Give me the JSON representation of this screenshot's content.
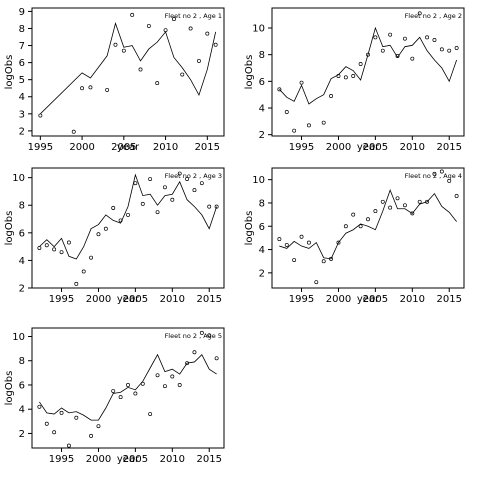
{
  "colors": {
    "line": "#000000",
    "points": "#000000",
    "frame": "#000000",
    "background": "#ffffff"
  },
  "chart_data": [
    {
      "type": "scatter",
      "title": "Fleet no 2 , Age 1",
      "xlabel": "year",
      "ylabel": "logObs",
      "xlim": [
        1994,
        2017
      ],
      "ylim": [
        1.7,
        9.2
      ],
      "xticks": [
        1995,
        2000,
        2005,
        2010,
        2015
      ],
      "yticks": [
        2,
        3,
        4,
        5,
        6,
        7,
        8,
        9
      ],
      "grid": false,
      "series": [
        {
          "type": "line",
          "x": [
            1995,
            2000,
            2001,
            2003,
            2004,
            2005,
            2006,
            2007,
            2008,
            2009,
            2010,
            2011,
            2012,
            2013,
            2014,
            2015,
            2016
          ],
          "y": [
            3.0,
            5.4,
            5.1,
            6.4,
            8.3,
            6.9,
            7.0,
            6.1,
            6.8,
            7.2,
            7.8,
            6.3,
            5.7,
            5.0,
            4.1,
            5.6,
            7.8
          ]
        },
        {
          "type": "points",
          "x": [
            1995,
            1999,
            2000,
            2001,
            2003,
            2004,
            2005,
            2006,
            2007,
            2008,
            2009,
            2010,
            2011,
            2012,
            2013,
            2014,
            2015,
            2016
          ],
          "y": [
            2.9,
            1.95,
            4.5,
            4.55,
            4.4,
            7.05,
            6.7,
            8.8,
            5.6,
            8.15,
            4.8,
            7.9,
            8.55,
            5.3,
            8.0,
            6.1,
            7.7,
            7.05
          ]
        }
      ]
    },
    {
      "type": "scatter",
      "title": "Fleet no 2 , Age 2",
      "xlabel": "year",
      "ylabel": "logObs",
      "xlim": [
        1991,
        2017
      ],
      "ylim": [
        1.9,
        11.5
      ],
      "xticks": [
        1995,
        2000,
        2005,
        2010,
        2015
      ],
      "yticks": [
        2,
        4,
        6,
        8,
        10
      ],
      "grid": false,
      "series": [
        {
          "type": "line",
          "x": [
            1992,
            1993,
            1994,
            1995,
            1996,
            1997,
            1998,
            1999,
            2000,
            2001,
            2002,
            2003,
            2004,
            2005,
            2006,
            2007,
            2008,
            2009,
            2010,
            2011,
            2012,
            2013,
            2014,
            2015,
            2016
          ],
          "y": [
            5.4,
            4.8,
            4.5,
            5.7,
            4.3,
            4.7,
            5.0,
            6.2,
            6.5,
            7.1,
            6.8,
            6.1,
            8.0,
            10.0,
            8.6,
            8.7,
            7.8,
            8.6,
            8.7,
            9.3,
            8.3,
            7.6,
            7.0,
            6.0,
            7.6
          ]
        },
        {
          "type": "points",
          "x": [
            1992,
            1993,
            1994,
            1995,
            1996,
            1998,
            1999,
            2000,
            2001,
            2002,
            2003,
            2004,
            2005,
            2006,
            2007,
            2008,
            2009,
            2010,
            2011,
            2012,
            2013,
            2014,
            2015,
            2016
          ],
          "y": [
            5.4,
            3.7,
            2.3,
            5.9,
            2.7,
            2.9,
            4.9,
            6.4,
            6.3,
            6.4,
            7.3,
            8.0,
            9.3,
            8.3,
            9.5,
            7.9,
            9.2,
            7.7,
            11.1,
            9.3,
            9.1,
            8.4,
            8.3,
            8.5
          ]
        }
      ]
    },
    {
      "type": "scatter",
      "title": "Fleet no 2 , Age 3",
      "xlabel": "year",
      "ylabel": "logObs",
      "xlim": [
        1991,
        2017
      ],
      "ylim": [
        2.0,
        10.7
      ],
      "xticks": [
        1995,
        2000,
        2005,
        2010,
        2015
      ],
      "yticks": [
        2,
        4,
        6,
        8,
        10
      ],
      "grid": false,
      "series": [
        {
          "type": "line",
          "x": [
            1992,
            1993,
            1994,
            1995,
            1996,
            1997,
            1998,
            1999,
            2000,
            2001,
            2002,
            2003,
            2004,
            2005,
            2006,
            2007,
            2008,
            2009,
            2010,
            2011,
            2012,
            2013,
            2014,
            2015,
            2016
          ],
          "y": [
            5.0,
            5.5,
            5.0,
            5.6,
            4.3,
            4.1,
            5.0,
            6.3,
            6.6,
            7.3,
            6.9,
            6.7,
            7.9,
            10.2,
            8.7,
            8.8,
            8.0,
            8.7,
            8.8,
            9.7,
            8.4,
            7.9,
            7.3,
            6.3,
            7.9
          ]
        },
        {
          "type": "points",
          "x": [
            1992,
            1993,
            1994,
            1995,
            1996,
            1997,
            1998,
            1999,
            2000,
            2001,
            2002,
            2003,
            2004,
            2005,
            2006,
            2007,
            2008,
            2009,
            2010,
            2011,
            2012,
            2013,
            2014,
            2015,
            2016
          ],
          "y": [
            4.9,
            5.1,
            4.8,
            4.6,
            5.3,
            2.3,
            3.2,
            4.2,
            5.9,
            6.3,
            7.8,
            6.9,
            7.3,
            9.6,
            8.1,
            9.9,
            7.5,
            9.3,
            8.4,
            10.3,
            9.9,
            9.1,
            9.6,
            7.9,
            7.9
          ]
        }
      ]
    },
    {
      "type": "scatter",
      "title": "Fleet no 2 , Age 4",
      "xlabel": "year",
      "ylabel": "logObs",
      "xlim": [
        1991,
        2017
      ],
      "ylim": [
        0.7,
        11.0
      ],
      "xticks": [
        1995,
        2000,
        2005,
        2010,
        2015
      ],
      "yticks": [
        2,
        4,
        6,
        8,
        10
      ],
      "grid": false,
      "series": [
        {
          "type": "line",
          "x": [
            1992,
            1993,
            1994,
            1995,
            1996,
            1997,
            1998,
            1999,
            2000,
            2001,
            2002,
            2003,
            2004,
            2005,
            2006,
            2007,
            2008,
            2009,
            2010,
            2011,
            2012,
            2013,
            2014,
            2015,
            2016
          ],
          "y": [
            4.3,
            4.1,
            4.7,
            4.3,
            4.1,
            4.6,
            3.3,
            3.2,
            4.6,
            5.4,
            5.7,
            6.2,
            6.0,
            5.7,
            7.3,
            9.1,
            7.5,
            7.5,
            7.1,
            7.9,
            8.1,
            8.8,
            7.7,
            7.2,
            6.4
          ]
        },
        {
          "type": "points",
          "x": [
            1992,
            1993,
            1994,
            1995,
            1996,
            1997,
            1998,
            1999,
            2000,
            2001,
            2002,
            2003,
            2004,
            2005,
            2006,
            2007,
            2008,
            2009,
            2010,
            2011,
            2012,
            2013,
            2014,
            2015,
            2016
          ],
          "y": [
            4.9,
            4.4,
            3.1,
            5.1,
            4.6,
            1.2,
            3.0,
            3.2,
            4.6,
            6.0,
            7.0,
            6.0,
            6.6,
            7.3,
            8.1,
            7.6,
            8.4,
            7.8,
            7.1,
            8.1,
            8.1,
            10.5,
            10.7,
            9.9,
            8.6
          ]
        }
      ]
    },
    {
      "type": "scatter",
      "title": "Fleet no 2 , Age 5",
      "xlabel": "year",
      "ylabel": "logObs",
      "xlim": [
        1991,
        2017
      ],
      "ylim": [
        0.8,
        10.7
      ],
      "xticks": [
        1995,
        2000,
        2005,
        2010,
        2015
      ],
      "yticks": [
        2,
        4,
        6,
        8,
        10
      ],
      "grid": false,
      "series": [
        {
          "type": "line",
          "x": [
            1992,
            1993,
            1994,
            1995,
            1996,
            1997,
            1998,
            1999,
            2000,
            2001,
            2002,
            2003,
            2004,
            2005,
            2006,
            2007,
            2008,
            2009,
            2010,
            2011,
            2012,
            2013,
            2014,
            2015,
            2016
          ],
          "y": [
            4.6,
            3.7,
            3.6,
            4.1,
            3.7,
            3.8,
            3.5,
            3.1,
            3.1,
            4.1,
            5.3,
            5.4,
            5.8,
            5.6,
            6.3,
            7.4,
            8.5,
            7.1,
            7.3,
            6.9,
            7.8,
            7.9,
            8.5,
            7.3,
            6.9
          ]
        },
        {
          "type": "points",
          "x": [
            1992,
            1993,
            1994,
            1995,
            1996,
            1997,
            1999,
            2000,
            2002,
            2003,
            2004,
            2005,
            2006,
            2007,
            2008,
            2009,
            2010,
            2011,
            2012,
            2013,
            2014,
            2015,
            2016
          ],
          "y": [
            4.2,
            2.8,
            2.1,
            3.7,
            1.0,
            3.3,
            1.8,
            2.6,
            5.5,
            5.0,
            6.0,
            5.3,
            6.1,
            3.6,
            6.8,
            5.9,
            6.7,
            6.0,
            7.8,
            8.7,
            10.3,
            10.1,
            8.2
          ]
        }
      ]
    }
  ]
}
